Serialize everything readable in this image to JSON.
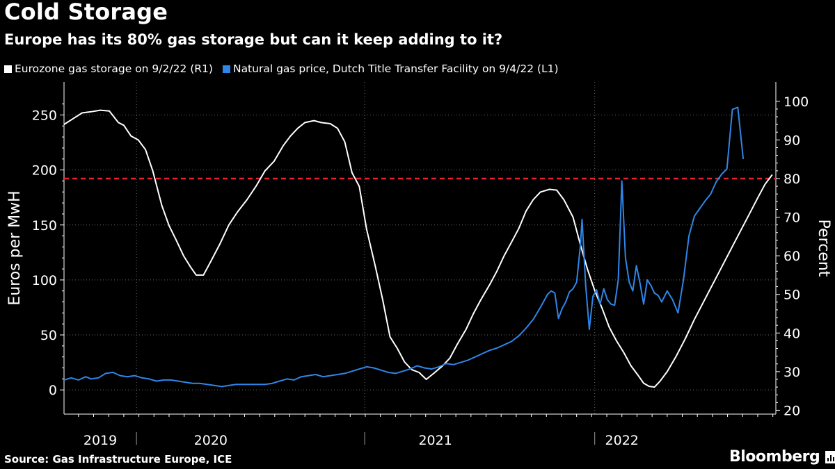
{
  "header": {
    "title": "Cold Storage",
    "subtitle": "Europe has its 80% gas storage but can it keep adding to it?"
  },
  "legend": {
    "storage_label": "Eurozone gas storage  on 9/2/22 (R1)",
    "price_label": "Natural gas price, Dutch Title Transfer Facility on 9/4/22 (L1)"
  },
  "footer": {
    "source": "Source: Gas Infrastructure Europe, ICE",
    "brand": "Bloomberg"
  },
  "colors": {
    "background": "#000000",
    "storage": "#ffffff",
    "price": "#2f86e8",
    "threshold": "#e8202f",
    "grid": "#6a6a6a"
  },
  "chart_data": {
    "type": "line",
    "title": "Cold Storage",
    "subtitle": "Europe has its 80% gas storage but can it keep adding to it?",
    "xlabel": "",
    "y_left_label": "Euros per MwH",
    "y_right_label": "Percent",
    "x_range": [
      2018.92,
      2022.85
    ],
    "x_tick_labels": [
      {
        "label": "2019",
        "center": 2019.12
      },
      {
        "label": "2020",
        "center": 2019.73
      },
      {
        "label": "2021",
        "center": 2020.97
      },
      {
        "label": "2022",
        "center": 2022.0
      }
    ],
    "year_separators": [
      2019.32,
      2020.58,
      2021.85
    ],
    "y_left": {
      "range": [
        -22,
        280
      ],
      "ticks": [
        0,
        50,
        100,
        150,
        200,
        250
      ]
    },
    "y_right": {
      "range": [
        19,
        105
      ],
      "ticks": [
        20,
        30,
        40,
        50,
        60,
        70,
        80,
        90,
        100
      ]
    },
    "threshold": {
      "value": 80,
      "axis": "right",
      "style": "dashed"
    },
    "series": [
      {
        "name": "Eurozone gas storage (R1)",
        "axis": "right",
        "color": "#ffffff",
        "points": [
          [
            2018.92,
            94.0
          ],
          [
            2018.97,
            95.5
          ],
          [
            2019.02,
            97.0
          ],
          [
            2019.07,
            97.3
          ],
          [
            2019.12,
            97.7
          ],
          [
            2019.17,
            97.5
          ],
          [
            2019.22,
            94.5
          ],
          [
            2019.25,
            93.8
          ],
          [
            2019.29,
            91.0
          ],
          [
            2019.33,
            90.0
          ],
          [
            2019.37,
            87.5
          ],
          [
            2019.41,
            82.0
          ],
          [
            2019.46,
            73.0
          ],
          [
            2019.5,
            67.8
          ],
          [
            2019.54,
            64.0
          ],
          [
            2019.58,
            60.0
          ],
          [
            2019.62,
            57.0
          ],
          [
            2019.65,
            55.0
          ],
          [
            2019.69,
            55.0
          ],
          [
            2019.73,
            58.5
          ],
          [
            2019.78,
            63.0
          ],
          [
            2019.83,
            68.0
          ],
          [
            2019.88,
            71.5
          ],
          [
            2019.93,
            74.5
          ],
          [
            2019.98,
            78.0
          ],
          [
            2020.03,
            82.0
          ],
          [
            2020.08,
            84.5
          ],
          [
            2020.13,
            88.5
          ],
          [
            2020.17,
            91.0
          ],
          [
            2020.21,
            93.0
          ],
          [
            2020.25,
            94.5
          ],
          [
            2020.3,
            95.0
          ],
          [
            2020.34,
            94.5
          ],
          [
            2020.39,
            94.2
          ],
          [
            2020.43,
            93.0
          ],
          [
            2020.47,
            89.5
          ],
          [
            2020.51,
            81.5
          ],
          [
            2020.55,
            78.0
          ],
          [
            2020.59,
            67.0
          ],
          [
            2020.64,
            57.0
          ],
          [
            2020.68,
            48.5
          ],
          [
            2020.72,
            39.0
          ],
          [
            2020.76,
            36.0
          ],
          [
            2020.8,
            32.5
          ],
          [
            2020.84,
            30.5
          ],
          [
            2020.88,
            29.8
          ],
          [
            2020.92,
            28.0
          ],
          [
            2020.96,
            29.5
          ],
          [
            2021.01,
            31.5
          ],
          [
            2021.05,
            33.5
          ],
          [
            2021.09,
            37.0
          ],
          [
            2021.14,
            41.0
          ],
          [
            2021.18,
            45.0
          ],
          [
            2021.22,
            48.5
          ],
          [
            2021.27,
            52.5
          ],
          [
            2021.31,
            56.0
          ],
          [
            2021.35,
            60.0
          ],
          [
            2021.39,
            63.5
          ],
          [
            2021.43,
            67.0
          ],
          [
            2021.47,
            71.5
          ],
          [
            2021.51,
            74.5
          ],
          [
            2021.55,
            76.5
          ],
          [
            2021.6,
            77.2
          ],
          [
            2021.64,
            77.0
          ],
          [
            2021.68,
            74.5
          ],
          [
            2021.73,
            70.0
          ],
          [
            2021.77,
            63.0
          ],
          [
            2021.81,
            56.5
          ],
          [
            2021.85,
            51.0
          ],
          [
            2021.89,
            46.5
          ],
          [
            2021.93,
            41.5
          ],
          [
            2021.97,
            38.0
          ],
          [
            2022.01,
            35.0
          ],
          [
            2022.05,
            31.5
          ],
          [
            2022.09,
            29.0
          ],
          [
            2022.12,
            27.0
          ],
          [
            2022.15,
            26.2
          ],
          [
            2022.18,
            26.0
          ],
          [
            2022.21,
            27.5
          ],
          [
            2022.25,
            30.0
          ],
          [
            2022.3,
            34.0
          ],
          [
            2022.35,
            38.5
          ],
          [
            2022.4,
            43.5
          ],
          [
            2022.45,
            48.0
          ],
          [
            2022.5,
            52.5
          ],
          [
            2022.55,
            57.0
          ],
          [
            2022.6,
            61.5
          ],
          [
            2022.65,
            66.0
          ],
          [
            2022.7,
            70.5
          ],
          [
            2022.75,
            75.0
          ],
          [
            2022.79,
            78.5
          ],
          [
            2022.83,
            81.0
          ]
        ]
      },
      {
        "name": "Natural gas price, Dutch TTF (L1)",
        "axis": "left",
        "color": "#2f86e8",
        "points": [
          [
            2018.92,
            9
          ],
          [
            2018.96,
            11
          ],
          [
            2019.0,
            9
          ],
          [
            2019.04,
            12
          ],
          [
            2019.07,
            10
          ],
          [
            2019.11,
            11
          ],
          [
            2019.15,
            15
          ],
          [
            2019.19,
            16
          ],
          [
            2019.23,
            13
          ],
          [
            2019.27,
            12
          ],
          [
            2019.31,
            13
          ],
          [
            2019.35,
            11
          ],
          [
            2019.39,
            10
          ],
          [
            2019.43,
            8
          ],
          [
            2019.47,
            9
          ],
          [
            2019.51,
            9
          ],
          [
            2019.55,
            8
          ],
          [
            2019.59,
            7
          ],
          [
            2019.63,
            6
          ],
          [
            2019.67,
            6
          ],
          [
            2019.71,
            5
          ],
          [
            2019.75,
            4
          ],
          [
            2019.79,
            3
          ],
          [
            2019.83,
            4
          ],
          [
            2019.87,
            5
          ],
          [
            2019.91,
            5
          ],
          [
            2019.95,
            5
          ],
          [
            2019.99,
            5
          ],
          [
            2020.03,
            5
          ],
          [
            2020.07,
            6
          ],
          [
            2020.11,
            8
          ],
          [
            2020.15,
            10
          ],
          [
            2020.19,
            9
          ],
          [
            2020.23,
            12
          ],
          [
            2020.27,
            13
          ],
          [
            2020.31,
            14
          ],
          [
            2020.35,
            12
          ],
          [
            2020.39,
            13
          ],
          [
            2020.43,
            14
          ],
          [
            2020.47,
            15
          ],
          [
            2020.51,
            17
          ],
          [
            2020.55,
            19
          ],
          [
            2020.59,
            21
          ],
          [
            2020.63,
            20
          ],
          [
            2020.67,
            18
          ],
          [
            2020.71,
            16
          ],
          [
            2020.75,
            15
          ],
          [
            2020.79,
            17
          ],
          [
            2020.83,
            19
          ],
          [
            2020.87,
            22
          ],
          [
            2020.91,
            20
          ],
          [
            2020.95,
            19
          ],
          [
            2020.99,
            21
          ],
          [
            2021.03,
            24
          ],
          [
            2021.07,
            23
          ],
          [
            2021.11,
            25
          ],
          [
            2021.15,
            27
          ],
          [
            2021.19,
            30
          ],
          [
            2021.23,
            33
          ],
          [
            2021.27,
            36
          ],
          [
            2021.31,
            38
          ],
          [
            2021.35,
            41
          ],
          [
            2021.39,
            44
          ],
          [
            2021.43,
            49
          ],
          [
            2021.47,
            56
          ],
          [
            2021.51,
            64
          ],
          [
            2021.55,
            75
          ],
          [
            2021.59,
            87
          ],
          [
            2021.61,
            90
          ],
          [
            2021.63,
            88
          ],
          [
            2021.65,
            65
          ],
          [
            2021.67,
            74
          ],
          [
            2021.69,
            80
          ],
          [
            2021.71,
            89
          ],
          [
            2021.73,
            92
          ],
          [
            2021.75,
            98
          ],
          [
            2021.77,
            130
          ],
          [
            2021.78,
            155
          ],
          [
            2021.8,
            95
          ],
          [
            2021.82,
            55
          ],
          [
            2021.84,
            85
          ],
          [
            2021.86,
            91
          ],
          [
            2021.88,
            78
          ],
          [
            2021.9,
            92
          ],
          [
            2021.92,
            82
          ],
          [
            2021.94,
            78
          ],
          [
            2021.96,
            77
          ],
          [
            2021.98,
            100
          ],
          [
            2022.0,
            190
          ],
          [
            2022.02,
            120
          ],
          [
            2022.04,
            98
          ],
          [
            2022.06,
            90
          ],
          [
            2022.08,
            113
          ],
          [
            2022.1,
            97
          ],
          [
            2022.12,
            78
          ],
          [
            2022.14,
            100
          ],
          [
            2022.16,
            95
          ],
          [
            2022.18,
            88
          ],
          [
            2022.2,
            86
          ],
          [
            2022.22,
            80
          ],
          [
            2022.25,
            90
          ],
          [
            2022.28,
            82
          ],
          [
            2022.31,
            70
          ],
          [
            2022.34,
            100
          ],
          [
            2022.37,
            140
          ],
          [
            2022.4,
            158
          ],
          [
            2022.43,
            165
          ],
          [
            2022.46,
            172
          ],
          [
            2022.49,
            178
          ],
          [
            2022.52,
            189
          ],
          [
            2022.55,
            196
          ],
          [
            2022.58,
            201
          ],
          [
            2022.61,
            255
          ],
          [
            2022.64,
            257
          ],
          [
            2022.67,
            210
          ]
        ]
      }
    ]
  }
}
